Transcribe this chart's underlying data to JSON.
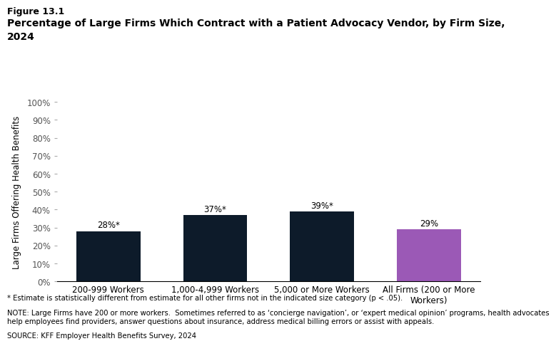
{
  "figure_label": "Figure 13.1",
  "title_line1": "Percentage of Large Firms Which Contract with a Patient Advocacy Vendor, by Firm Size,",
  "title_line2": "2024",
  "categories": [
    "200-999 Workers",
    "1,000-4,999 Workers",
    "5,000 or More Workers",
    "All Firms (200 or More\nWorkers)"
  ],
  "values": [
    28,
    37,
    39,
    29
  ],
  "bar_labels": [
    "28%*",
    "37%*",
    "39%*",
    "29%"
  ],
  "bar_colors": [
    "#0d1b2a",
    "#0d1b2a",
    "#0d1b2a",
    "#9b59b6"
  ],
  "ylabel": "Large Firms Offering Health Benefits",
  "ylim": [
    0,
    100
  ],
  "yticks": [
    0,
    10,
    20,
    30,
    40,
    50,
    60,
    70,
    80,
    90,
    100
  ],
  "ytick_labels": [
    "0%",
    "10%",
    "20%",
    "30%",
    "40%",
    "50%",
    "60%",
    "70%",
    "80%",
    "90%",
    "100%"
  ],
  "footnote1": "* Estimate is statistically different from estimate for all other firms not in the indicated size category (p < .05).",
  "footnote2": "NOTE: Large Firms have 200 or more workers.  Sometimes referred to as ‘concierge navigation’, or ‘expert medical opinion’ programs, health advocates\nhelp employees find providers, answer questions about insurance, address medical billing errors or assist with appeals.",
  "footnote3": "SOURCE: KFF Employer Health Benefits Survey, 2024",
  "background_color": "#ffffff",
  "bar_width": 0.6,
  "figure_label_fontsize": 9,
  "title_fontsize": 10,
  "tick_fontsize": 8.5,
  "label_fontsize": 8.5,
  "footnote_fontsize": 7.2,
  "ylabel_fontsize": 8.5
}
